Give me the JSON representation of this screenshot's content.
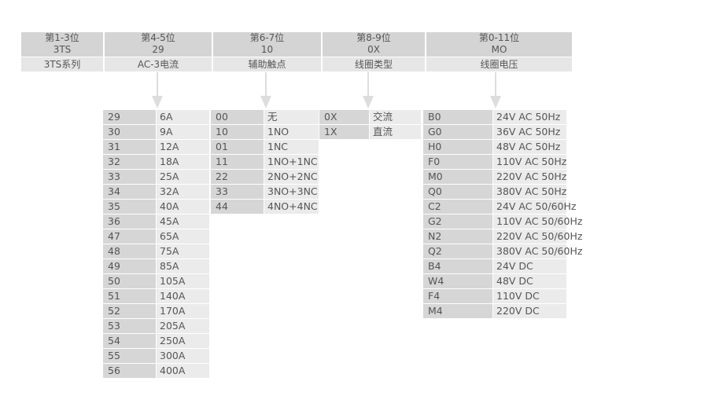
{
  "header": [
    {
      "pos": "第1-3位",
      "code": "3TS",
      "label": "3TS系列"
    },
    {
      "pos": "第4-5位",
      "code": "29",
      "label": "AC-3电流"
    },
    {
      "pos": "第6-7位",
      "code": "10",
      "label": "辅助触点"
    },
    {
      "pos": "第8-9位",
      "code": "0X",
      "label": "线圈类型"
    },
    {
      "pos": "第0-11位",
      "code": "MO",
      "label": "线圈电压"
    }
  ],
  "current": [
    [
      "29",
      "6A"
    ],
    [
      "30",
      "9A"
    ],
    [
      "31",
      "12A"
    ],
    [
      "32",
      "18A"
    ],
    [
      "33",
      "25A"
    ],
    [
      "34",
      "32A"
    ],
    [
      "35",
      "40A"
    ],
    [
      "36",
      "45A"
    ],
    [
      "47",
      "65A"
    ],
    [
      "48",
      "75A"
    ],
    [
      "49",
      "85A"
    ],
    [
      "50",
      "105A"
    ],
    [
      "51",
      "140A"
    ],
    [
      "52",
      "170A"
    ],
    [
      "53",
      "205A"
    ],
    [
      "54",
      "250A"
    ],
    [
      "55",
      "300A"
    ],
    [
      "56",
      "400A"
    ]
  ],
  "aux": [
    [
      "00",
      "无"
    ],
    [
      "10",
      "1NO"
    ],
    [
      "01",
      "1NC"
    ],
    [
      "11",
      "1NO+1NC"
    ],
    [
      "22",
      "2NO+2NC"
    ],
    [
      "33",
      "3NO+3NC"
    ],
    [
      "44",
      "4NO+4NC"
    ]
  ],
  "coil_type": [
    [
      "0X",
      "交流"
    ],
    [
      "1X",
      "直流"
    ]
  ],
  "coil_voltage": [
    [
      "B0",
      "24V AC 50Hz"
    ],
    [
      "G0",
      "36V AC 50Hz"
    ],
    [
      "H0",
      "48V AC 50Hz"
    ],
    [
      "F0",
      "110V AC 50Hz"
    ],
    [
      "M0",
      "220V AC 50Hz"
    ],
    [
      "Q0",
      "380V AC 50Hz"
    ],
    [
      "C2",
      "24V AC 50/60Hz"
    ],
    [
      "G2",
      "110V AC 50/60Hz"
    ],
    [
      "N2",
      "220V AC 50/60Hz"
    ],
    [
      "Q2",
      "380V AC 50/60Hz"
    ],
    [
      "B4",
      "24V DC"
    ],
    [
      "W4",
      "48V DC"
    ],
    [
      "F4",
      "110V DC"
    ],
    [
      "M4",
      "220V DC"
    ]
  ]
}
